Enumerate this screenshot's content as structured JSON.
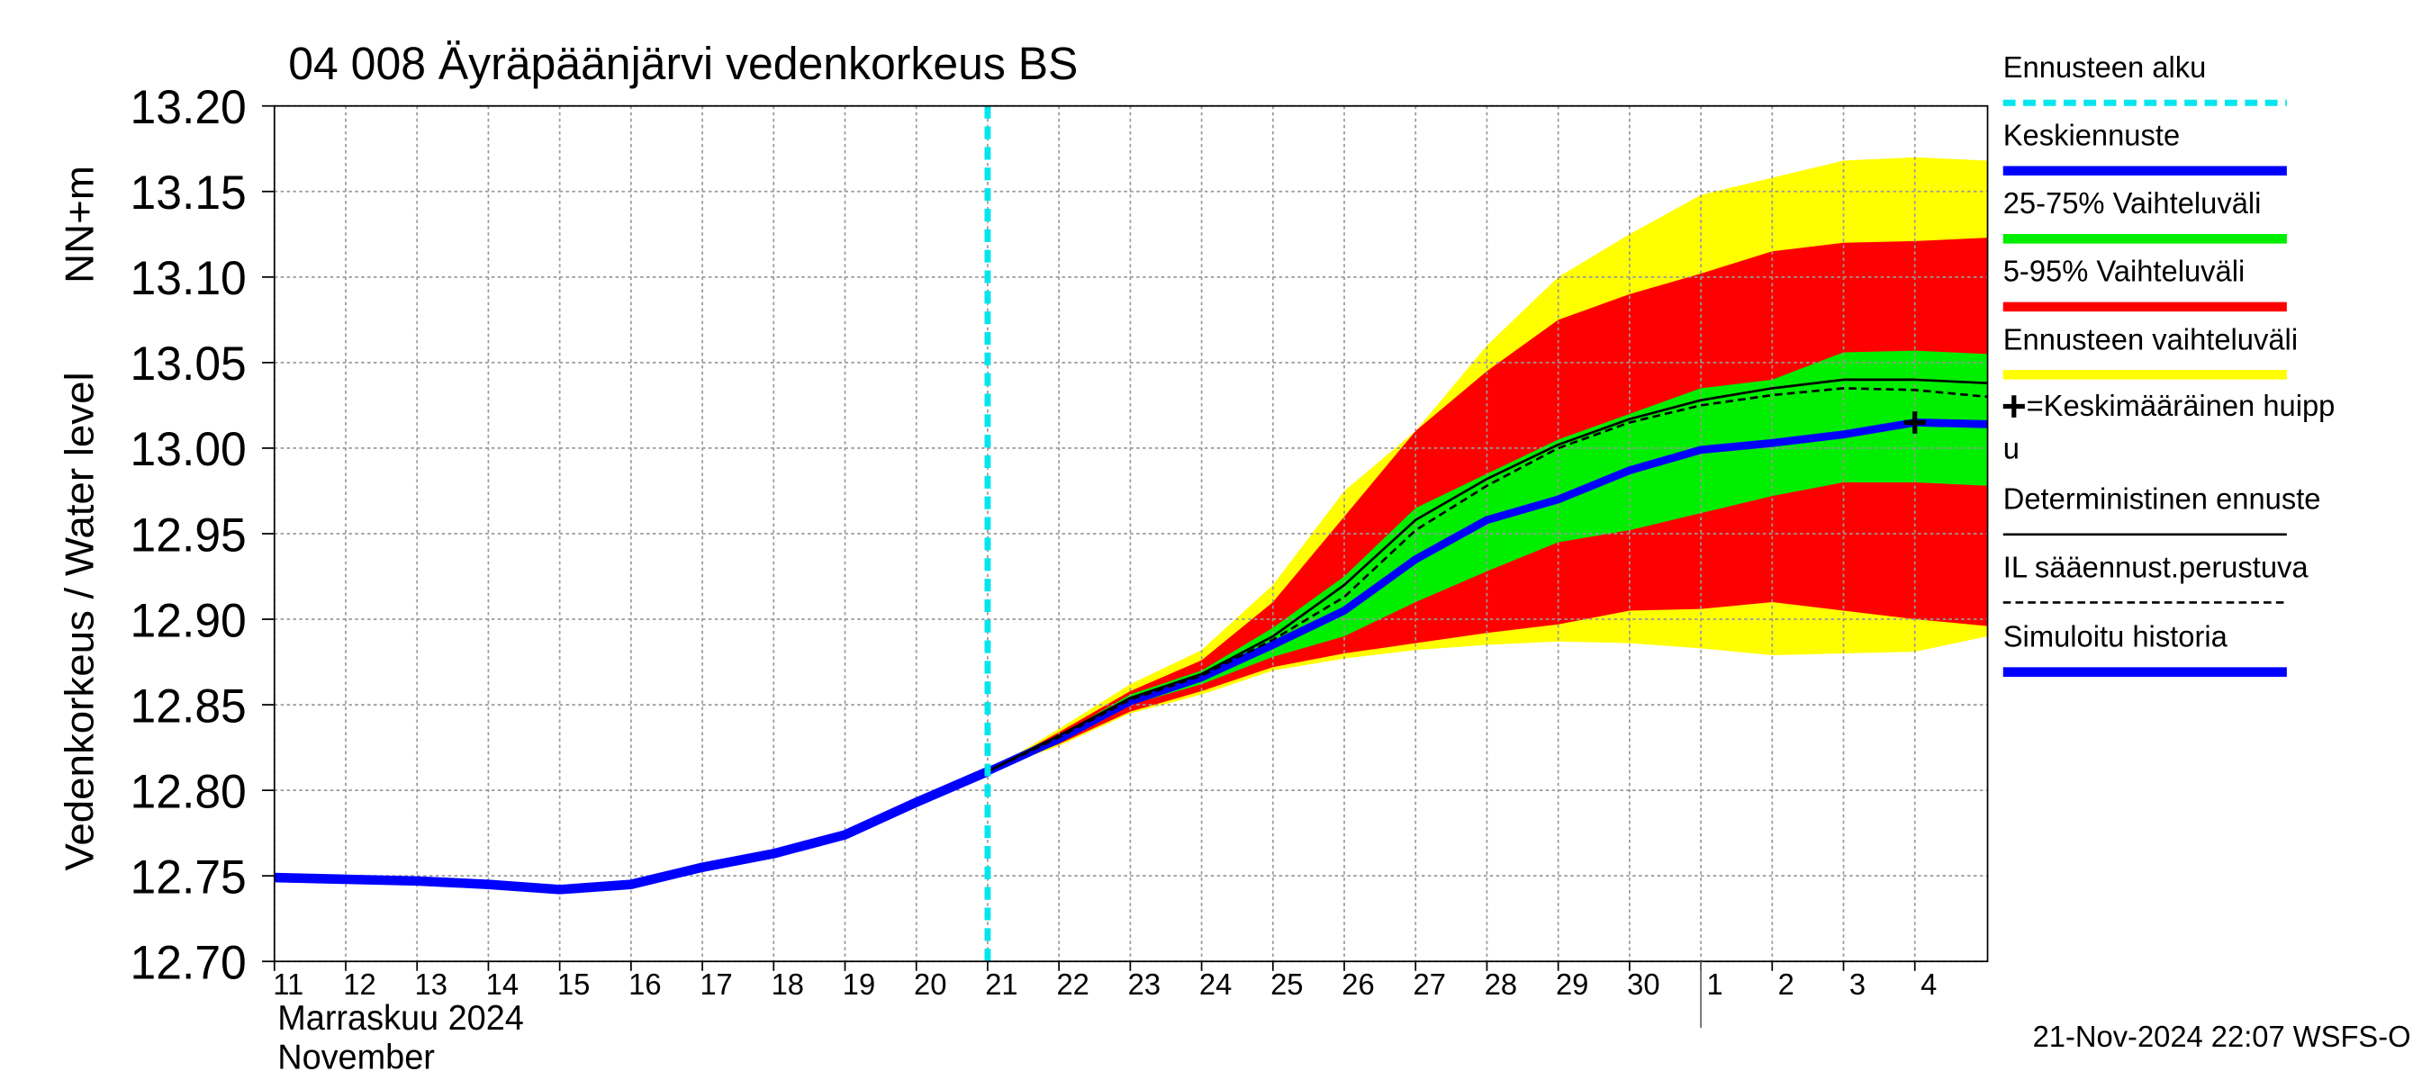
{
  "chart_data": {
    "type": "line",
    "title": "04 008 Äyräpäänjärvi vedenkorkeus BS",
    "y_label_lines": [
      "NN+m",
      "Vedenkorkeus / Water level"
    ],
    "x_label_lines": [
      "Marraskuu 2024",
      "November"
    ],
    "footer": "21-Nov-2024 22:07 WSFS-O",
    "xlim": [
      0,
      24.02
    ],
    "ylim": [
      12.7,
      13.2
    ],
    "yticks": [
      {
        "value": 12.7,
        "label": "12.70"
      },
      {
        "value": 12.75,
        "label": "12.75"
      },
      {
        "value": 12.8,
        "label": "12.80"
      },
      {
        "value": 12.85,
        "label": "12.85"
      },
      {
        "value": 12.9,
        "label": "12.90"
      },
      {
        "value": 12.95,
        "label": "12.95"
      },
      {
        "value": 13.0,
        "label": "13.00"
      },
      {
        "value": 13.05,
        "label": "13.05"
      },
      {
        "value": 13.1,
        "label": "13.10"
      },
      {
        "value": 13.15,
        "label": "13.15"
      },
      {
        "value": 13.2,
        "label": "13.20"
      }
    ],
    "xticks": [
      {
        "value": 0,
        "label": "11"
      },
      {
        "value": 1,
        "label": "12"
      },
      {
        "value": 2,
        "label": "13"
      },
      {
        "value": 3,
        "label": "14"
      },
      {
        "value": 4,
        "label": "15"
      },
      {
        "value": 5,
        "label": "16"
      },
      {
        "value": 6,
        "label": "17"
      },
      {
        "value": 7,
        "label": "18"
      },
      {
        "value": 8,
        "label": "19"
      },
      {
        "value": 9,
        "label": "20"
      },
      {
        "value": 10,
        "label": "21"
      },
      {
        "value": 11,
        "label": "22"
      },
      {
        "value": 12,
        "label": "23"
      },
      {
        "value": 13,
        "label": "24"
      },
      {
        "value": 14,
        "label": "25"
      },
      {
        "value": 15,
        "label": "26"
      },
      {
        "value": 16,
        "label": "27"
      },
      {
        "value": 17,
        "label": "28"
      },
      {
        "value": 18,
        "label": "29"
      },
      {
        "value": 19,
        "label": "30"
      },
      {
        "value": 20,
        "label": "1"
      },
      {
        "value": 21,
        "label": "2"
      },
      {
        "value": 22,
        "label": "3"
      },
      {
        "value": 23,
        "label": "4"
      }
    ],
    "month_break": 20,
    "grid": true,
    "forecast_start": {
      "name": "Ennusteen alku",
      "x": 10,
      "color": "#00e5ee"
    },
    "series": [
      {
        "name": "Ennusteen vaihteluväli",
        "kind": "band",
        "color": "#ffff00",
        "x": [
          10,
          11,
          12,
          13,
          14,
          15,
          16,
          17,
          18,
          19,
          20,
          21,
          22,
          23,
          24.02
        ],
        "high": [
          12.811,
          12.836,
          12.862,
          12.882,
          12.92,
          12.975,
          13.01,
          13.06,
          13.1,
          13.125,
          13.148,
          13.158,
          13.168,
          13.17,
          13.168
        ],
        "low": [
          12.811,
          12.826,
          12.845,
          12.856,
          12.87,
          12.877,
          12.882,
          12.885,
          12.887,
          12.886,
          12.883,
          12.879,
          12.88,
          12.881,
          12.89
        ]
      },
      {
        "name": "5-95% Vaihteluväli",
        "kind": "band",
        "color": "#ff0000",
        "x": [
          10,
          11,
          12,
          13,
          14,
          15,
          16,
          17,
          18,
          19,
          20,
          21,
          22,
          23,
          24.02
        ],
        "high": [
          12.811,
          12.834,
          12.858,
          12.876,
          12.91,
          12.96,
          13.01,
          13.045,
          13.075,
          13.09,
          13.102,
          13.115,
          13.12,
          13.121,
          13.123
        ],
        "low": [
          12.811,
          12.827,
          12.846,
          12.858,
          12.872,
          12.88,
          12.886,
          12.892,
          12.897,
          12.905,
          12.906,
          12.91,
          12.905,
          12.9,
          12.896
        ]
      },
      {
        "name": "25-75% Vaihteluväli",
        "kind": "band",
        "color": "#00ee00",
        "x": [
          10,
          11,
          12,
          13,
          14,
          15,
          16,
          17,
          18,
          19,
          20,
          21,
          22,
          23,
          24.02
        ],
        "high": [
          12.811,
          12.832,
          12.856,
          12.87,
          12.895,
          12.925,
          12.965,
          12.985,
          13.005,
          13.02,
          13.035,
          13.04,
          13.056,
          13.057,
          13.055
        ],
        "low": [
          12.811,
          12.829,
          12.85,
          12.862,
          12.878,
          12.89,
          12.91,
          12.928,
          12.945,
          12.952,
          12.962,
          12.972,
          12.98,
          12.98,
          12.978
        ]
      },
      {
        "name": "Keskiennuste",
        "kind": "line",
        "color": "#0000ff",
        "width": 5,
        "x": [
          10,
          11,
          12,
          13,
          14,
          15,
          16,
          17,
          18,
          19,
          20,
          21,
          22,
          23,
          24.02
        ],
        "values": [
          12.811,
          12.83,
          12.852,
          12.866,
          12.885,
          12.905,
          12.935,
          12.958,
          12.97,
          12.987,
          12.999,
          13.003,
          13.008,
          13.015,
          13.014
        ]
      },
      {
        "name": "Deterministinen ennuste",
        "kind": "line",
        "color": "#000000",
        "width": 1.5,
        "x": [
          10,
          11,
          12,
          13,
          14,
          15,
          16,
          17,
          18,
          19,
          20,
          21,
          22,
          23,
          24.02
        ],
        "values": [
          12.811,
          12.832,
          12.854,
          12.868,
          12.89,
          12.92,
          12.958,
          12.982,
          13.002,
          13.017,
          13.028,
          13.035,
          13.04,
          13.04,
          13.038
        ]
      },
      {
        "name": "IL sääennust.perustuva",
        "kind": "line",
        "color": "#000000",
        "width": 1.5,
        "dashed": true,
        "x": [
          10,
          11,
          12,
          13,
          14,
          15,
          16,
          17,
          18,
          19,
          20,
          21,
          22,
          23,
          24.02
        ],
        "values": [
          12.811,
          12.831,
          12.853,
          12.867,
          12.888,
          12.913,
          12.952,
          12.978,
          13.0,
          13.015,
          13.025,
          13.031,
          13.035,
          13.034,
          13.03
        ]
      },
      {
        "name": "Simuloitu historia",
        "kind": "line",
        "color": "#0000ff",
        "width": 6,
        "x": [
          0,
          1,
          2,
          3,
          4,
          5,
          6,
          7,
          8,
          9,
          10
        ],
        "values": [
          12.749,
          12.748,
          12.747,
          12.745,
          12.742,
          12.745,
          12.755,
          12.763,
          12.774,
          12.793,
          12.811
        ]
      }
    ],
    "peak": {
      "name_lines": [
        "=Keskimääräinen huipp",
        "u"
      ],
      "x": 23,
      "y": 13.015,
      "color": "#000000"
    }
  }
}
